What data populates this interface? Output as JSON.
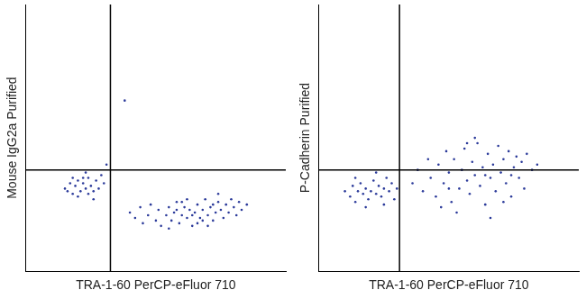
{
  "chart_data": [
    {
      "type": "scatter",
      "x_label": "TRA-1-60 PerCP-eFluor 710",
      "y_label": "Mouse IgG2a Purified",
      "xlim": [
        0,
        100
      ],
      "ylim": [
        0,
        100
      ],
      "tick_labels": false,
      "grid": false,
      "marker": "dot",
      "color": "#2b3a9a",
      "quadrant": {
        "x": 32.5,
        "y": 38
      },
      "x": [
        15,
        17,
        18,
        19,
        20,
        21,
        22,
        23,
        24,
        25,
        26,
        27,
        28,
        29,
        20,
        23,
        18,
        26,
        30,
        16,
        24,
        22,
        38,
        31,
        40,
        42,
        44,
        45,
        47,
        48,
        50,
        51,
        52,
        54,
        55,
        56,
        57,
        58,
        59,
        60,
        61,
        62,
        63,
        64,
        65,
        66,
        67,
        68,
        69,
        70,
        71,
        72,
        73,
        74,
        75,
        76,
        77,
        78,
        79,
        80,
        81,
        82,
        83,
        85,
        62,
        55,
        70,
        66,
        74,
        58,
        64,
        72,
        60,
        68
      ],
      "values": [
        31,
        33,
        29,
        32,
        34,
        30,
        33,
        31,
        35,
        32,
        30,
        34,
        31,
        36,
        28,
        37,
        35,
        27,
        33,
        30,
        29,
        35,
        64,
        40,
        22,
        20,
        24,
        18,
        21,
        25,
        19,
        23,
        17,
        21,
        24,
        19,
        22,
        26,
        18,
        21,
        24,
        20,
        23,
        17,
        22,
        25,
        20,
        23,
        27,
        21,
        24,
        19,
        22,
        26,
        23,
        20,
        25,
        22,
        27,
        24,
        21,
        26,
        23,
        25,
        27,
        16,
        17,
        18,
        29,
        23,
        21,
        25,
        26,
        19
      ]
    },
    {
      "type": "scatter",
      "x_label": "TRA-1-60 PerCP-eFluor 710",
      "y_label": "P-Cadherin Purified",
      "xlim": [
        0,
        100
      ],
      "ylim": [
        0,
        100
      ],
      "tick_labels": false,
      "grid": false,
      "marker": "dot",
      "color": "#2b3a9a",
      "quadrant": {
        "x": 31,
        "y": 38
      },
      "x": [
        10,
        12,
        13,
        14,
        15,
        16,
        17,
        18,
        19,
        20,
        21,
        22,
        23,
        24,
        25,
        26,
        27,
        28,
        29,
        30,
        18,
        22,
        14,
        25,
        36,
        38,
        40,
        42,
        43,
        45,
        46,
        48,
        49,
        50,
        51,
        52,
        54,
        55,
        56,
        57,
        58,
        59,
        60,
        61,
        62,
        63,
        64,
        65,
        66,
        67,
        68,
        69,
        70,
        71,
        72,
        73,
        74,
        75,
        76,
        77,
        78,
        79,
        80,
        82,
        84,
        53,
        66,
        60,
        47,
        71,
        57,
        64,
        74,
        50
      ],
      "values": [
        30,
        28,
        32,
        26,
        30,
        33,
        29,
        31,
        27,
        30,
        34,
        29,
        32,
        28,
        31,
        35,
        30,
        33,
        27,
        31,
        24,
        37,
        35,
        25,
        33,
        38,
        30,
        42,
        35,
        28,
        40,
        33,
        45,
        37,
        26,
        42,
        31,
        38,
        46,
        34,
        29,
        41,
        36,
        48,
        32,
        39,
        25,
        44,
        35,
        40,
        30,
        47,
        37,
        42,
        33,
        45,
        28,
        39,
        43,
        35,
        41,
        31,
        44,
        38,
        40,
        22,
        20,
        50,
        24,
        26,
        48,
        36,
        36,
        31
      ]
    }
  ]
}
